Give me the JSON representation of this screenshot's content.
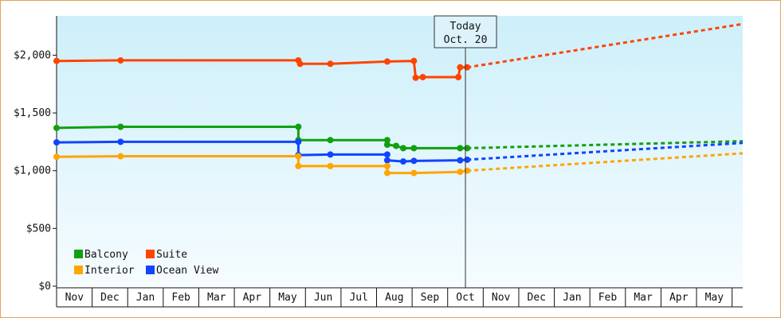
{
  "chart_data": {
    "type": "line",
    "yticks": [
      {
        "value": 0,
        "label": "$0"
      },
      {
        "value": 500,
        "label": "$500"
      },
      {
        "value": 1000,
        "label": "$1,000"
      },
      {
        "value": 1500,
        "label": "$1,500"
      },
      {
        "value": 2000,
        "label": "$2,000"
      }
    ],
    "ylim": [
      0,
      2340
    ],
    "xlim": [
      0,
      19.3
    ],
    "months": [
      "Nov",
      "Dec",
      "Jan",
      "Feb",
      "Mar",
      "Apr",
      "May",
      "Jun",
      "Jul",
      "Aug",
      "Sep",
      "Oct",
      "Nov",
      "Dec",
      "Jan",
      "Feb",
      "Mar",
      "Apr",
      "May"
    ],
    "today": {
      "x": 11.5,
      "line1": "Today",
      "line2": "Oct. 20"
    },
    "legend": {
      "placement": "bottom-left"
    },
    "series": [
      {
        "name": "Suite",
        "color": "#ff4400",
        "points": [
          [
            0.0,
            1950
          ],
          [
            1.8,
            1955
          ],
          [
            6.8,
            1955
          ],
          [
            6.85,
            1925
          ],
          [
            7.7,
            1925
          ],
          [
            9.3,
            1945
          ],
          [
            10.05,
            1950
          ],
          [
            10.1,
            1805
          ],
          [
            10.3,
            1810
          ],
          [
            11.3,
            1810
          ],
          [
            11.35,
            1895
          ],
          [
            11.55,
            1895
          ]
        ],
        "forecast": [
          [
            11.55,
            1895
          ],
          [
            19.3,
            2270
          ]
        ]
      },
      {
        "name": "Balcony",
        "color": "#11a011",
        "points": [
          [
            0.0,
            1370
          ],
          [
            1.8,
            1380
          ],
          [
            6.8,
            1380
          ],
          [
            6.8,
            1265
          ],
          [
            7.7,
            1265
          ],
          [
            9.3,
            1265
          ],
          [
            9.3,
            1225
          ],
          [
            9.55,
            1215
          ],
          [
            9.75,
            1195
          ],
          [
            10.05,
            1195
          ],
          [
            11.35,
            1195
          ],
          [
            11.55,
            1195
          ]
        ],
        "forecast": [
          [
            11.55,
            1195
          ],
          [
            19.3,
            1255
          ]
        ]
      },
      {
        "name": "Ocean View",
        "color": "#1144ff",
        "points": [
          [
            0.0,
            1245
          ],
          [
            1.8,
            1250
          ],
          [
            6.8,
            1250
          ],
          [
            6.8,
            1135
          ],
          [
            7.7,
            1140
          ],
          [
            9.3,
            1140
          ],
          [
            9.3,
            1090
          ],
          [
            9.75,
            1080
          ],
          [
            10.05,
            1085
          ],
          [
            11.35,
            1090
          ],
          [
            11.55,
            1095
          ]
        ],
        "forecast": [
          [
            11.55,
            1095
          ],
          [
            19.3,
            1240
          ]
        ]
      },
      {
        "name": "Interior",
        "color": "#ffa500",
        "points": [
          [
            0.0,
            1120
          ],
          [
            1.8,
            1125
          ],
          [
            6.8,
            1125
          ],
          [
            6.8,
            1040
          ],
          [
            7.7,
            1040
          ],
          [
            9.3,
            1040
          ],
          [
            9.3,
            980
          ],
          [
            10.05,
            980
          ],
          [
            11.35,
            990
          ],
          [
            11.55,
            1000
          ]
        ],
        "forecast": [
          [
            11.55,
            1000
          ],
          [
            19.3,
            1150
          ]
        ]
      }
    ],
    "legend_order": [
      "Balcony",
      "Suite",
      "Interior",
      "Ocean View"
    ]
  }
}
